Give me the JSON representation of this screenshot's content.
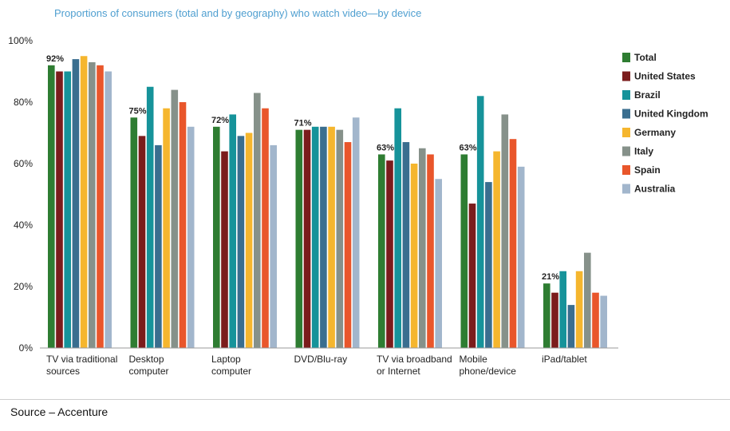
{
  "chart_data": {
    "type": "bar",
    "title": "Proportions of consumers (total and by geography) who watch video—by device",
    "xlabel": "",
    "ylabel": "",
    "ylim": [
      0,
      100
    ],
    "yticks": [
      "0%",
      "20%",
      "40%",
      "60%",
      "80%",
      "100%"
    ],
    "categories": [
      [
        "TV via traditional",
        "sources"
      ],
      [
        "Desktop",
        "computer"
      ],
      [
        "Laptop",
        "computer"
      ],
      [
        "DVD/Blu-ray"
      ],
      [
        "TV via broadband",
        "or Internet"
      ],
      [
        "Mobile",
        "phone/device"
      ],
      [
        "iPad/tablet"
      ]
    ],
    "data_labels": [
      "92%",
      "75%",
      "72%",
      "71%",
      "63%",
      "63%",
      "21%"
    ],
    "legend_position": "right",
    "series": [
      {
        "name": "Total",
        "color": "#2e7d32",
        "values": [
          92,
          75,
          72,
          71,
          63,
          63,
          21
        ]
      },
      {
        "name": "United States",
        "color": "#7b1c1c",
        "values": [
          90,
          69,
          64,
          71,
          61,
          47,
          18
        ]
      },
      {
        "name": "Brazil",
        "color": "#16939a",
        "values": [
          90,
          85,
          76,
          72,
          78,
          82,
          25
        ]
      },
      {
        "name": "United Kingdom",
        "color": "#3a6e8f",
        "values": [
          94,
          66,
          69,
          72,
          67,
          54,
          14
        ]
      },
      {
        "name": "Germany",
        "color": "#f5b62e",
        "values": [
          95,
          78,
          70,
          72,
          60,
          64,
          25
        ]
      },
      {
        "name": "Italy",
        "color": "#86918a",
        "values": [
          93,
          84,
          83,
          71,
          65,
          76,
          31
        ]
      },
      {
        "name": "Spain",
        "color": "#e9562b",
        "values": [
          92,
          80,
          78,
          67,
          63,
          68,
          18
        ]
      },
      {
        "name": "Australia",
        "color": "#a2b6cc",
        "values": [
          90,
          72,
          66,
          75,
          55,
          59,
          17
        ]
      }
    ]
  },
  "footer": {
    "source": "Source – Accenture"
  }
}
